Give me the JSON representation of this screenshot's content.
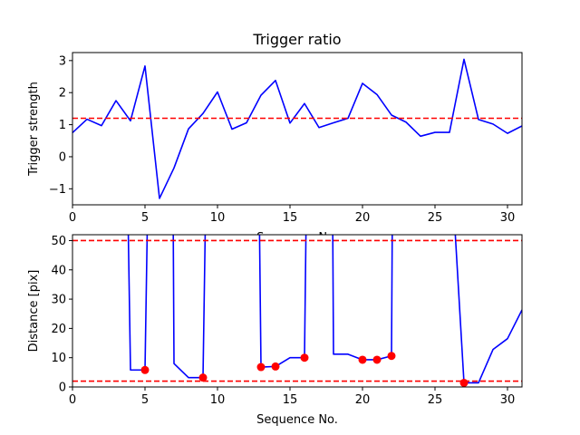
{
  "chart_data": [
    {
      "type": "line",
      "title": "Trigger ratio",
      "xlabel": "Sequence No.",
      "ylabel": "Trigger strength",
      "xlim": [
        0,
        31
      ],
      "ylim": [
        -1.5,
        3.25
      ],
      "xticks": [
        0,
        5,
        10,
        15,
        20,
        25,
        30
      ],
      "yticks": [
        -1,
        0,
        1,
        2,
        3
      ],
      "grid": false,
      "series": [
        {
          "color": "#0000ff",
          "x": [
            0,
            1,
            2,
            3,
            4,
            5,
            6,
            7,
            8,
            9,
            10,
            11,
            12,
            13,
            14,
            15,
            16,
            17,
            18,
            19,
            20,
            21,
            22,
            23,
            24,
            25,
            26,
            27,
            28,
            29,
            30,
            31
          ],
          "y": [
            0.75,
            1.17,
            0.97,
            1.75,
            1.12,
            2.83,
            -1.3,
            -0.35,
            0.87,
            1.35,
            2.02,
            0.86,
            1.06,
            1.92,
            2.38,
            1.05,
            1.66,
            0.91,
            1.06,
            1.2,
            2.29,
            1.94,
            1.3,
            1.08,
            0.64,
            0.76,
            0.76,
            3.04,
            1.16,
            1.02,
            0.73,
            0.96
          ]
        }
      ],
      "hlines": [
        {
          "y": 1.2,
          "color": "#ff0000",
          "style": "dashed"
        }
      ]
    },
    {
      "type": "line",
      "xlabel": "Sequence No.",
      "ylabel": "Distance [pix]",
      "xlim": [
        0,
        31
      ],
      "ylim": [
        0,
        52
      ],
      "xticks": [
        0,
        5,
        10,
        15,
        20,
        25,
        30
      ],
      "yticks": [
        0,
        10,
        20,
        30,
        40,
        50
      ],
      "grid": false,
      "series": [
        {
          "color": "#0000ff",
          "segments": [
            {
              "x": [
                3.85,
                4,
                5,
                5.15
              ],
              "y": [
                52,
                5.8,
                5.8,
                52
              ]
            },
            {
              "x": [
                6.95,
                7,
                8,
                9,
                9.15
              ],
              "y": [
                52,
                8.0,
                3.2,
                3.2,
                52
              ]
            },
            {
              "x": [
                12.9,
                13,
                14,
                15,
                16,
                16.1
              ],
              "y": [
                52,
                6.8,
                7.0,
                10.0,
                10.0,
                52
              ]
            },
            {
              "x": [
                17.95,
                18,
                19,
                20,
                21,
                22,
                22.05
              ],
              "y": [
                52,
                11.2,
                11.2,
                9.3,
                9.3,
                10.6,
                52
              ]
            },
            {
              "x": [
                26.4,
                27,
                28,
                29,
                30,
                31
              ],
              "y": [
                52,
                1.4,
                1.4,
                12.8,
                16.5,
                26.3
              ]
            }
          ]
        },
        {
          "name": "",
          "color": "#ff0000",
          "marker": "circle",
          "x": [
            5,
            9,
            13,
            14,
            16,
            20,
            21,
            22,
            27
          ],
          "y": [
            5.8,
            3.2,
            6.8,
            7.0,
            10.0,
            9.3,
            9.3,
            10.6,
            1.4
          ]
        }
      ],
      "hlines": [
        {
          "y": 50,
          "color": "#ff0000",
          "style": "dashed"
        },
        {
          "y": 2,
          "color": "#ff0000",
          "style": "dashed"
        }
      ]
    }
  ]
}
